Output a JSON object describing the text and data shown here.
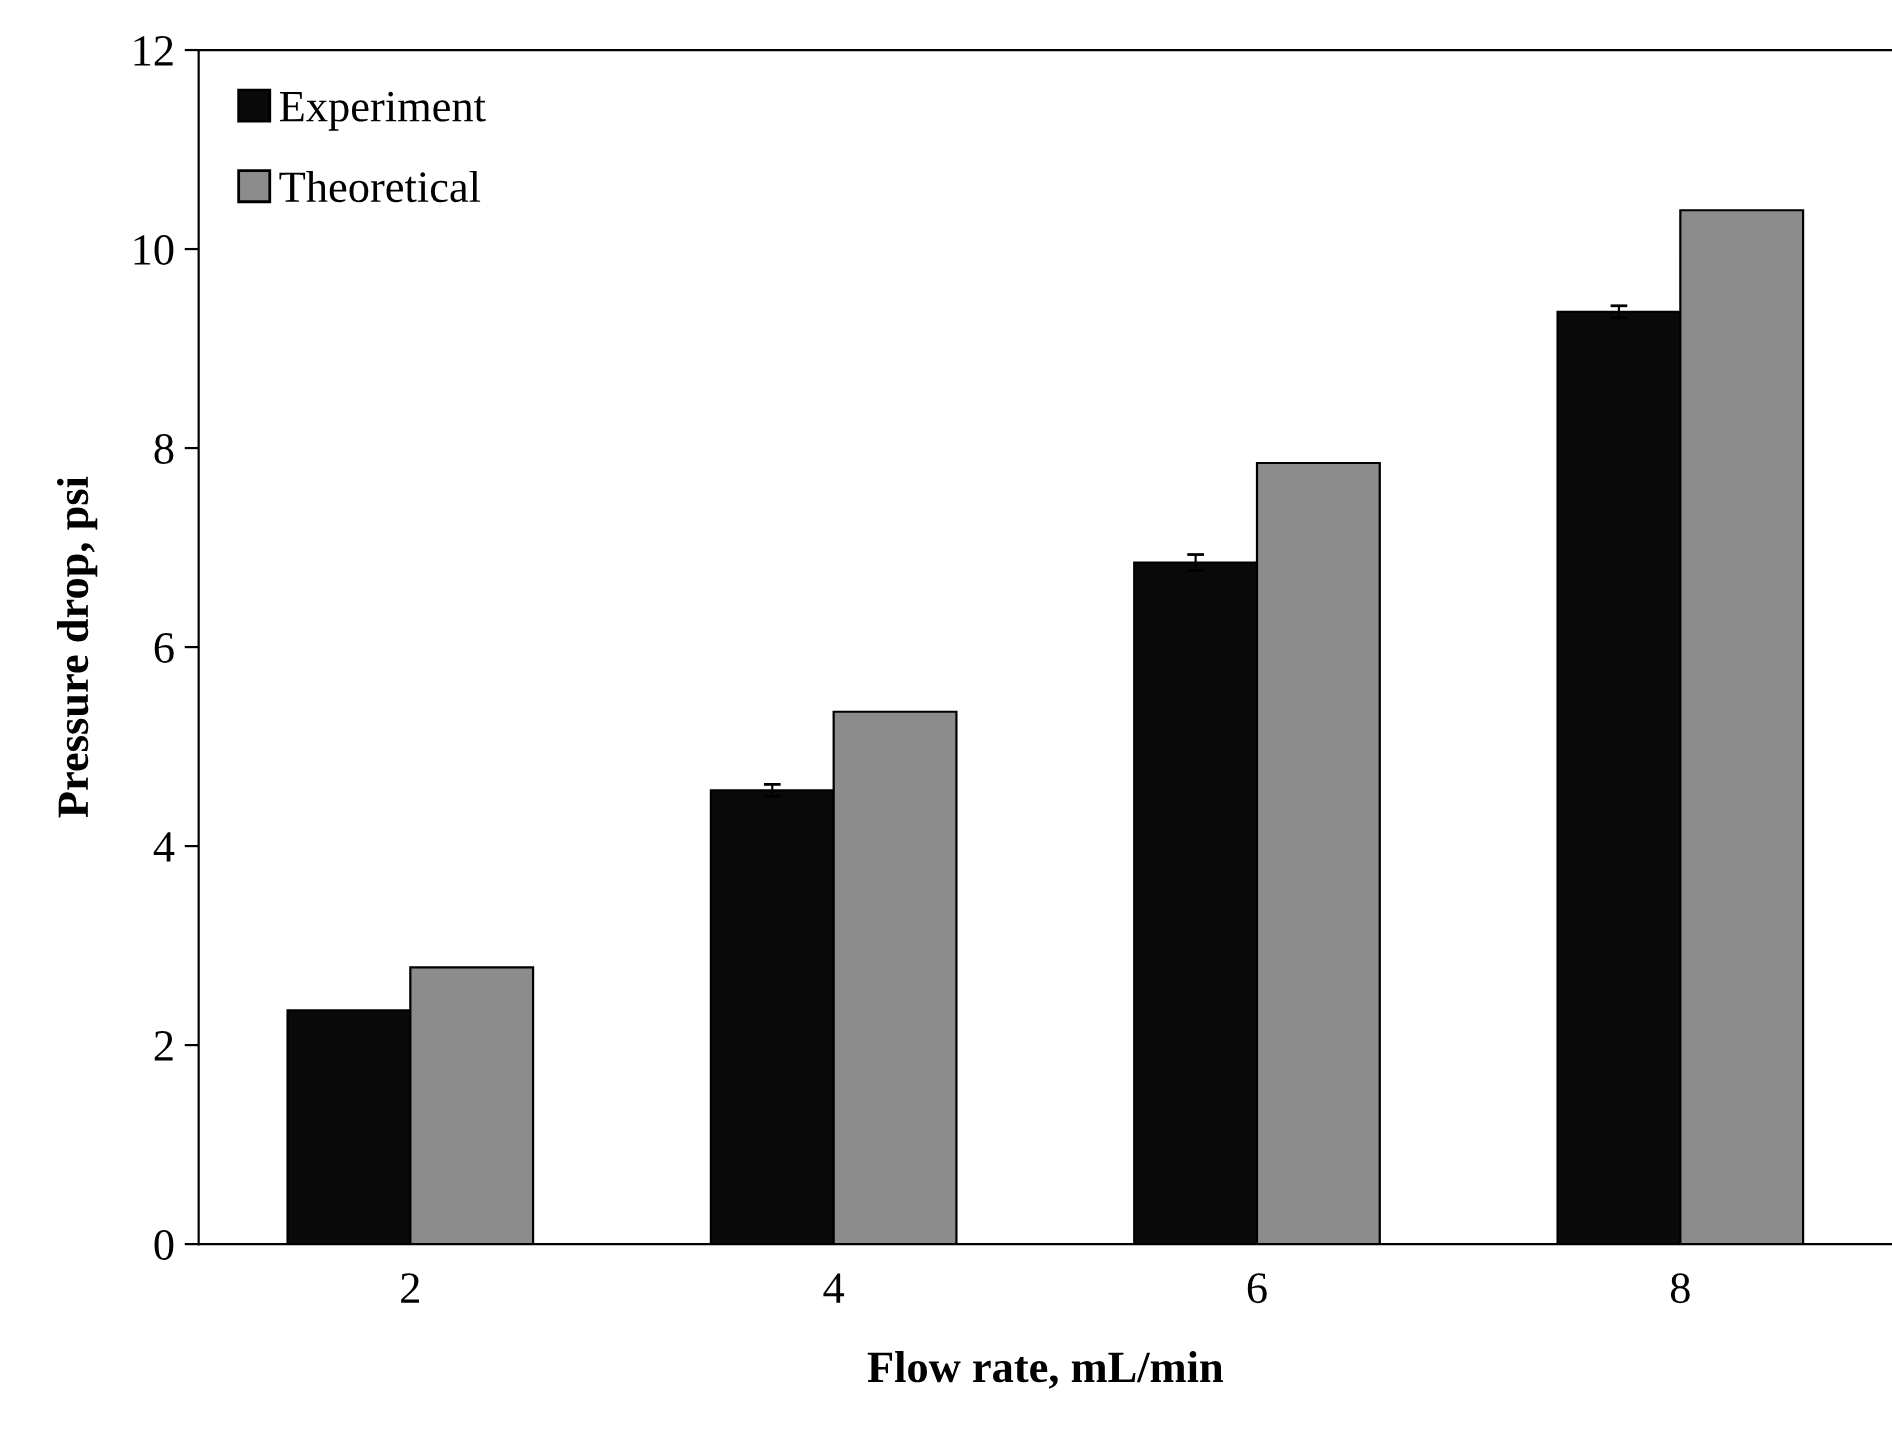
{
  "chart_data": {
    "type": "bar",
    "xlabel": "Flow rate, mL/min",
    "ylabel": "Pressure drop, psi",
    "categories": [
      "2",
      "4",
      "6",
      "8"
    ],
    "series": [
      {
        "name": "Experiment",
        "color": "#0a0a0a",
        "values": [
          2.35,
          4.56,
          6.85,
          9.37
        ],
        "errors": [
          null,
          0.06,
          0.08,
          0.06
        ]
      },
      {
        "name": "Theoretical",
        "color": "#8c8c8c",
        "values": [
          2.78,
          5.35,
          7.85,
          10.39
        ]
      }
    ],
    "ylim": [
      0,
      12
    ],
    "yticks": [
      0,
      2,
      4,
      6,
      8,
      10,
      12
    ],
    "grid": false,
    "legend": "top left"
  }
}
